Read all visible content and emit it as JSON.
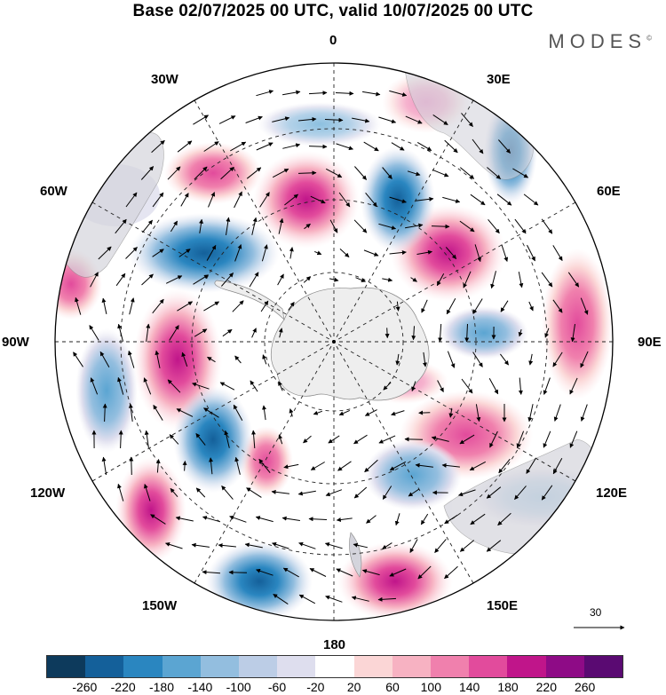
{
  "title": "Base 02/07/2025 00 UTC, valid 10/07/2025 00 UTC",
  "brand": "MODES",
  "brand_mark": "©",
  "longitude_labels": [
    {
      "text": "0"
    },
    {
      "text": "30E"
    },
    {
      "text": "60E"
    },
    {
      "text": "90E"
    },
    {
      "text": "120E"
    },
    {
      "text": "150E"
    },
    {
      "text": "180"
    },
    {
      "text": "150W"
    },
    {
      "text": "120W"
    },
    {
      "text": "90W"
    },
    {
      "text": "60W"
    },
    {
      "text": "30W"
    }
  ],
  "vector_scale_label": "30",
  "colorbar": {
    "colors": [
      "#0d3a5c",
      "#14609a",
      "#2a86c0",
      "#5ba5d2",
      "#93bedf",
      "#bccde6",
      "#dedeee",
      "#ffffff",
      "#fbd6d6",
      "#f7b2c2",
      "#f080ad",
      "#e24b9c",
      "#c0158a",
      "#8e0b86",
      "#5a0a72"
    ],
    "labels": [
      "-260",
      "-220",
      "-180",
      "-140",
      "-100",
      "-60",
      "-20",
      "20",
      "60",
      "100",
      "140",
      "180",
      "220",
      "260"
    ]
  }
}
